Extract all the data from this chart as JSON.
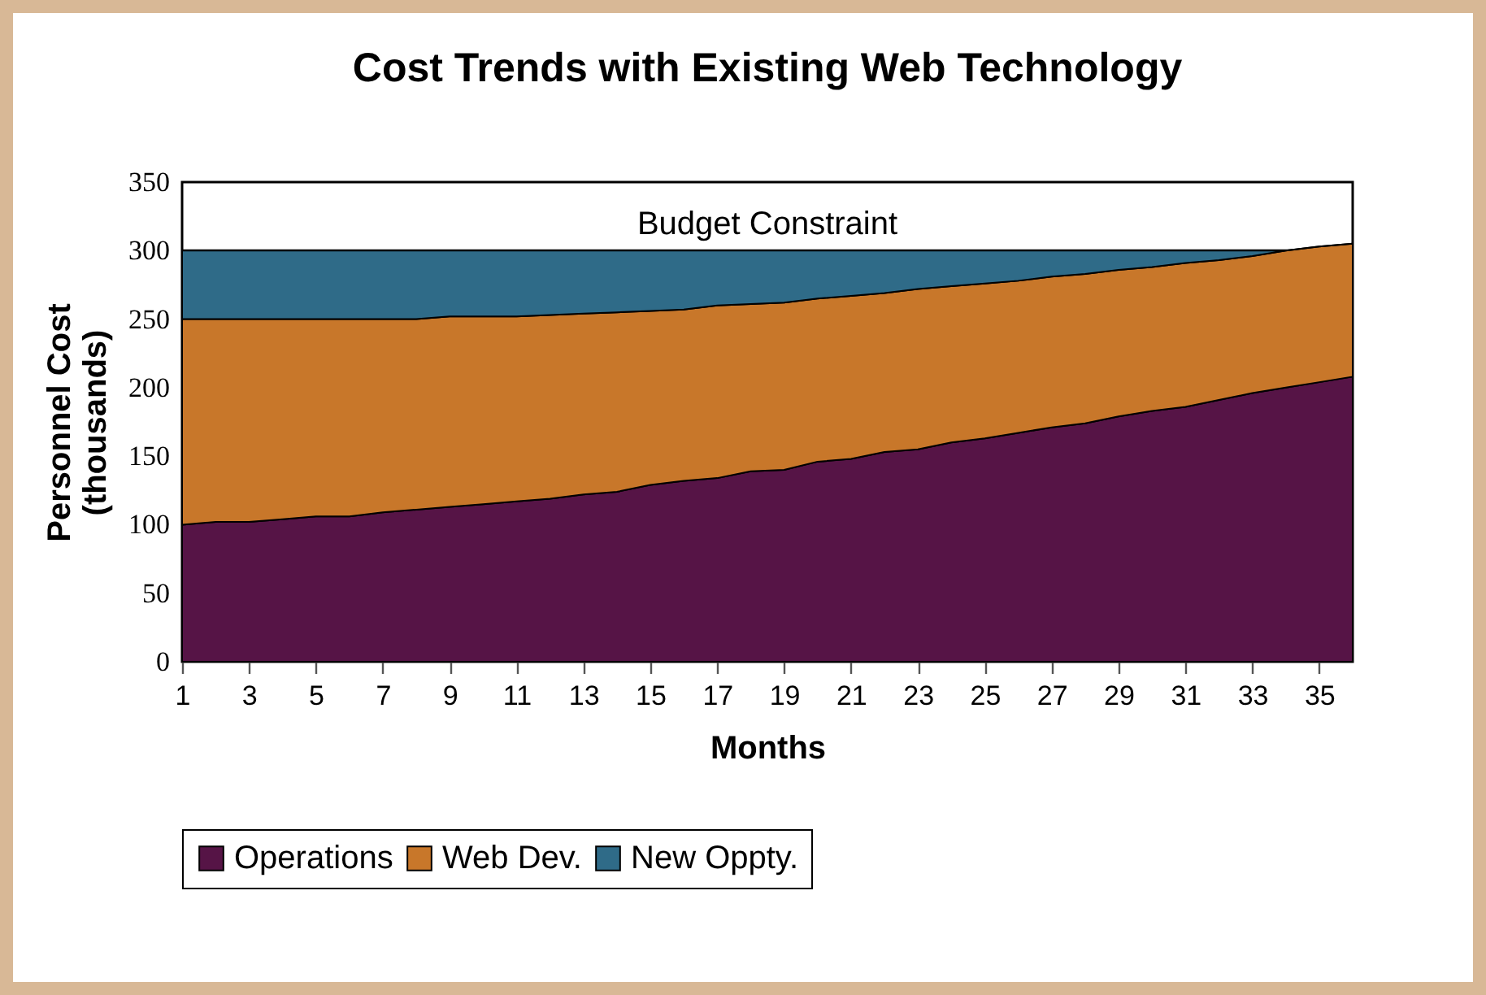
{
  "chart_data": {
    "type": "area",
    "title": "Cost Trends with Existing Web Technology",
    "xlabel": "Months",
    "ylabel": "Personnel Cost (thousands)",
    "stacked": true,
    "legend": "bottom",
    "grid": false,
    "x": [
      1,
      2,
      3,
      4,
      5,
      6,
      7,
      8,
      9,
      10,
      11,
      12,
      13,
      14,
      15,
      16,
      17,
      18,
      19,
      20,
      21,
      22,
      23,
      24,
      25,
      26,
      27,
      28,
      29,
      30,
      31,
      32,
      33,
      34,
      35,
      36
    ],
    "xlim": [
      1,
      36
    ],
    "xticks": [
      1,
      3,
      5,
      7,
      9,
      11,
      13,
      15,
      17,
      19,
      21,
      23,
      25,
      27,
      29,
      31,
      33,
      35
    ],
    "ylim": [
      0,
      350
    ],
    "yticks": [
      0,
      50,
      100,
      150,
      200,
      250,
      300,
      350
    ],
    "ref_lines": [
      {
        "axis": "y",
        "value": 300,
        "label": "Budget Constraint",
        "color": "#000000"
      }
    ],
    "series": [
      {
        "name": "Operations",
        "color": "#561446",
        "values": [
          100,
          102,
          102,
          104,
          106,
          106,
          109,
          111,
          113,
          115,
          117,
          119,
          122,
          124,
          129,
          132,
          134,
          139,
          140,
          146,
          148,
          153,
          155,
          160,
          163,
          167,
          171,
          174,
          179,
          183,
          186,
          191,
          196,
          200,
          204,
          208
        ]
      },
      {
        "name": "Web Dev.",
        "color": "#c8772a",
        "values": [
          150,
          148,
          148,
          146,
          144,
          144,
          141,
          139,
          139,
          137,
          135,
          134,
          132,
          131,
          127,
          125,
          126,
          122,
          122,
          119,
          119,
          116,
          117,
          114,
          113,
          111,
          110,
          109,
          107,
          105,
          105,
          102,
          100,
          100,
          99,
          97
        ]
      },
      {
        "name": "New Oppty.",
        "color": "#2f6b88",
        "values": [
          50,
          50,
          50,
          50,
          50,
          50,
          50,
          50,
          48,
          48,
          48,
          47,
          46,
          45,
          44,
          43,
          40,
          39,
          38,
          35,
          33,
          31,
          28,
          26,
          24,
          22,
          19,
          17,
          14,
          12,
          9,
          7,
          4,
          0,
          0,
          0
        ]
      }
    ]
  }
}
